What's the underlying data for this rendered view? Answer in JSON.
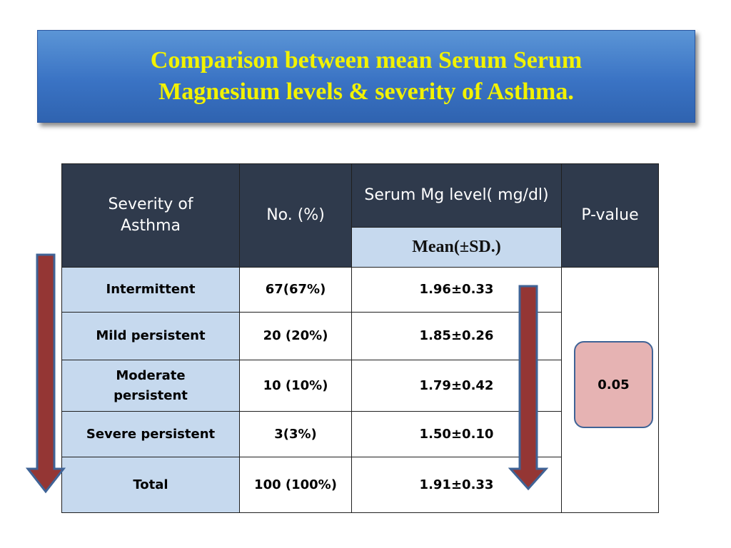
{
  "title": {
    "line1": "Comparison between mean Serum Serum",
    "line2": "Magnesium levels & severity of Asthma."
  },
  "table": {
    "headers": {
      "severity": "Severity of Asthma",
      "count": "No. (%)",
      "serum": "Serum Mg level( mg/dl)",
      "mean_sd": "Mean(±SD.)",
      "pvalue": "P-value"
    },
    "rows": [
      {
        "severity": "Intermittent",
        "count": "67(67%)",
        "mean": "1.96±0.33"
      },
      {
        "severity": "Mild persistent",
        "count": "20 (20%)",
        "mean": "1.85±0.26"
      },
      {
        "severity": "Moderate persistent",
        "count": "10 (10%)",
        "mean": "1.79±0.42"
      },
      {
        "severity": "Severe persistent",
        "count": "3(3%)",
        "mean": "1.50±0.10"
      },
      {
        "severity": "Total",
        "count": "100 (100%)",
        "mean": "1.91±0.33"
      }
    ],
    "pvalue": "0.05"
  },
  "colors": {
    "title_bg": "#3a73c4",
    "title_text": "#f2f200",
    "header_bg": "#2f3a4c",
    "light_blue": "#c6d9ee",
    "arrow": "#943634",
    "pbox_fill": "#e6b3b3"
  }
}
